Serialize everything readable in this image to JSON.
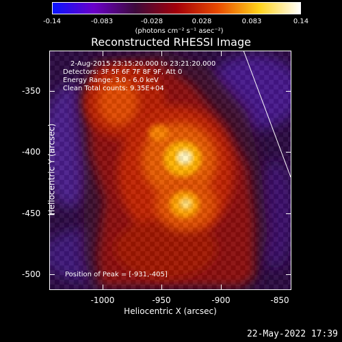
{
  "colorbar": {
    "ticks": [
      "-0.14",
      "-0.083",
      "-0.028",
      "0.028",
      "0.083",
      "0.14"
    ],
    "units": "(photons cm⁻² s⁻¹ asec⁻²)",
    "colors": [
      "#0a14ff",
      "#6a00c8",
      "#3d0a3c",
      "#a3000a",
      "#e84a00",
      "#ffd21a",
      "#ffffff"
    ]
  },
  "title": "Reconstructed RHESSI Image",
  "info": {
    "line1": "2-Aug-2015 23:15:20.000 to 23:21:20.000",
    "line2": "Detectors: 3F 5F 6F 7F 8F 9F, Att 0",
    "line3": "Energy Range: 3.0 - 6.0 keV",
    "line4": "Clean     Total counts: 9.35E+04"
  },
  "peak": "Position of Peak = [-931,-405]",
  "axes": {
    "x_title": "Heliocentric X (arcsec)",
    "y_title": "Heliocentric Y (arcsec)",
    "x_ticks": [
      "-1000",
      "-950",
      "-900",
      "-850"
    ],
    "y_ticks": [
      "-350",
      "-400",
      "-450",
      "-500"
    ]
  },
  "timestamp": "22-May-2022 17:39"
}
